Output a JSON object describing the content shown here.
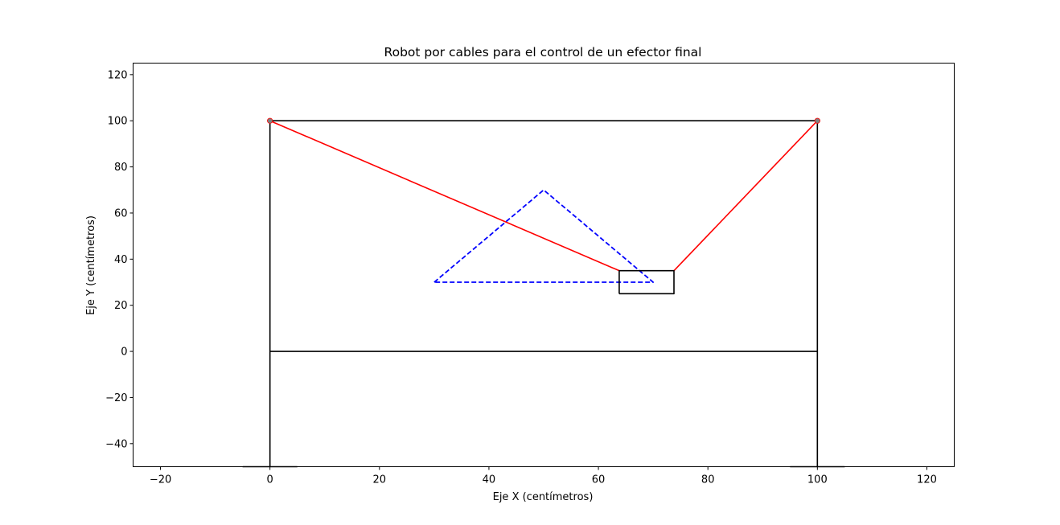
{
  "chart_data": {
    "type": "line",
    "title": "Robot por cables para el control de un efector final",
    "xlabel": "Eje X (centímetros)",
    "ylabel": "Eje Y (centímetros)",
    "xlim": [
      -25,
      125
    ],
    "ylim": [
      -50,
      125
    ],
    "xticks": [
      -20,
      0,
      20,
      40,
      60,
      80,
      100,
      120
    ],
    "yticks": [
      -40,
      -20,
      0,
      20,
      40,
      60,
      80,
      100,
      120
    ],
    "grid": false,
    "colors": {
      "frame": "#000000",
      "cable": "#ff0000",
      "path": "#0000ff",
      "anchor": "#808080"
    },
    "series": [
      {
        "style": "frame",
        "x": [
          0,
          0,
          100,
          100
        ],
        "y": [
          -50,
          100,
          100,
          -50
        ]
      },
      {
        "style": "frame",
        "x": [
          0,
          100
        ],
        "y": [
          0,
          0
        ]
      },
      {
        "style": "frame",
        "x": [
          -5,
          5
        ],
        "y": [
          -50,
          -50
        ]
      },
      {
        "style": "frame",
        "x": [
          95,
          105
        ],
        "y": [
          -50,
          -50
        ]
      },
      {
        "style": "cable",
        "x": [
          0,
          63.8
        ],
        "y": [
          100,
          35
        ]
      },
      {
        "style": "cable",
        "x": [
          100,
          73.8
        ],
        "y": [
          100,
          35
        ]
      },
      {
        "style": "path",
        "x": [
          30,
          50,
          70,
          30
        ],
        "y": [
          30,
          70,
          30,
          30
        ]
      },
      {
        "style": "effector",
        "x": [
          63.8,
          73.8,
          73.8,
          63.8,
          63.8
        ],
        "y": [
          25,
          25,
          35,
          35,
          25
        ]
      }
    ],
    "anchors": [
      {
        "x": 0,
        "y": 100
      },
      {
        "x": 100,
        "y": 100
      }
    ]
  }
}
